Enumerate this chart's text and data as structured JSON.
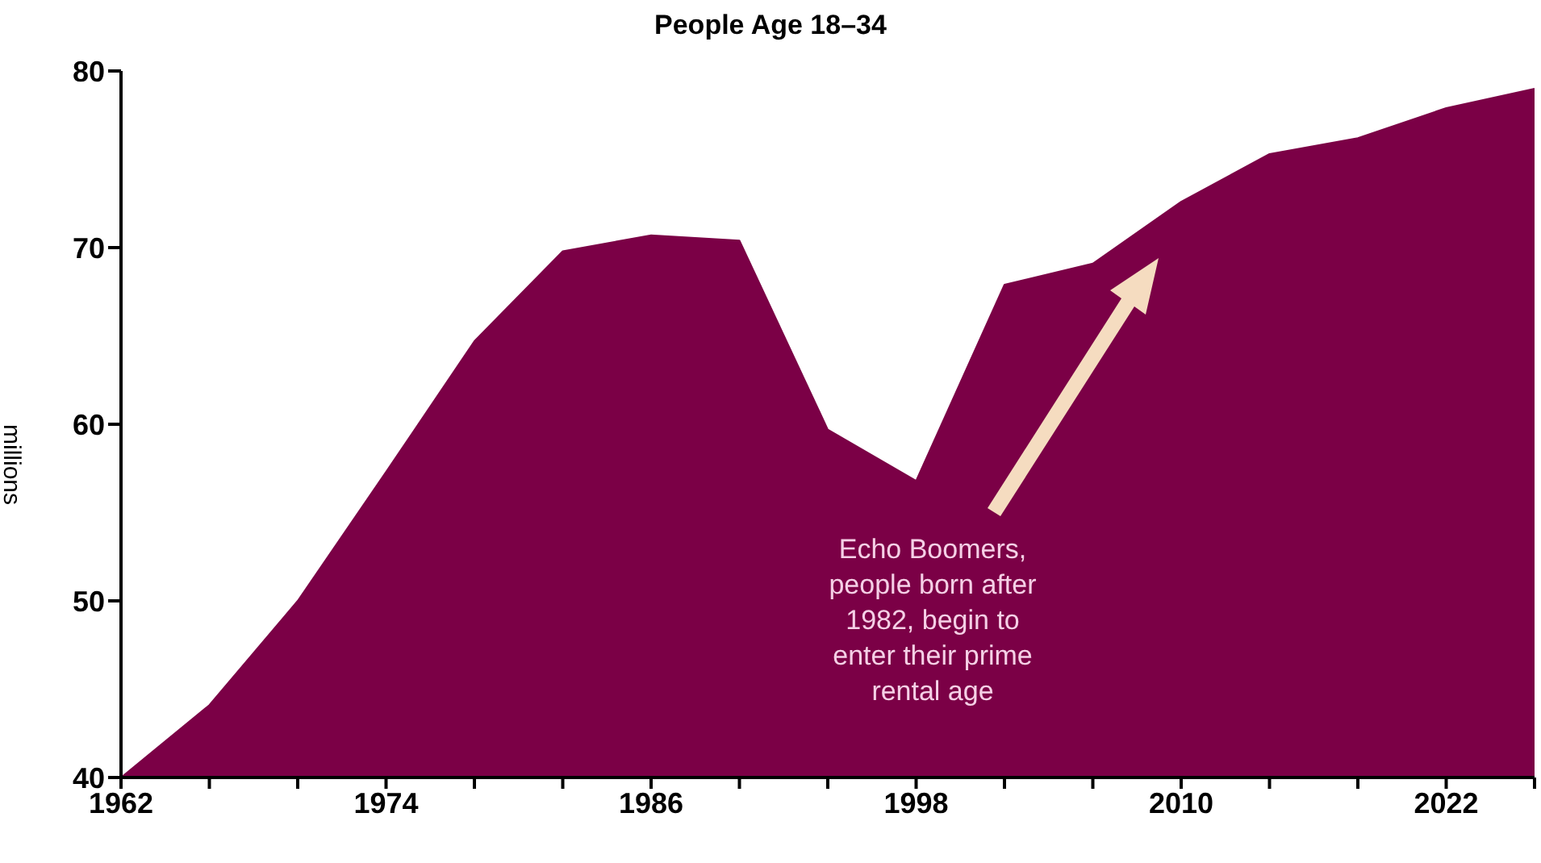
{
  "chart_data": {
    "type": "area",
    "title": "People Age 18–34",
    "ylabel": "millions",
    "x": [
      1962,
      1966,
      1970,
      1974,
      1978,
      1982,
      1986,
      1990,
      1994,
      1998,
      2002,
      2006,
      2010,
      2014,
      2018,
      2022,
      2026
    ],
    "series": [
      {
        "color": "#7b0046",
        "values": [
          40,
          44.1,
          50,
          57.3,
          64.7,
          69.8,
          70.7,
          70.4,
          59.7,
          56.8,
          67.9,
          69.1,
          72.6,
          75.3,
          76.2,
          77.9,
          79
        ]
      }
    ],
    "xlim": [
      1962,
      2026
    ],
    "xticks": [
      1962,
      {
        "value": 1966,
        "label": null
      },
      {
        "value": 1970,
        "label": null
      },
      1974,
      {
        "value": 1978,
        "label": null
      },
      {
        "value": 1982,
        "label": null
      },
      1986,
      {
        "value": 1990,
        "label": null
      },
      {
        "value": 1994,
        "label": null
      },
      1998,
      {
        "value": 2002,
        "label": null
      },
      {
        "value": 2006,
        "label": null
      },
      2010,
      {
        "value": 2014,
        "label": null
      },
      {
        "value": 2018,
        "label": null
      },
      2022,
      {
        "value": 2026,
        "label": null
      }
    ],
    "ylim": [
      40,
      80
    ],
    "yticks": [
      40,
      50,
      60,
      70,
      80
    ],
    "annotations": [
      "Echo Boomers, people born after 1982, begin to enter their prime rental age"
    ]
  }
}
